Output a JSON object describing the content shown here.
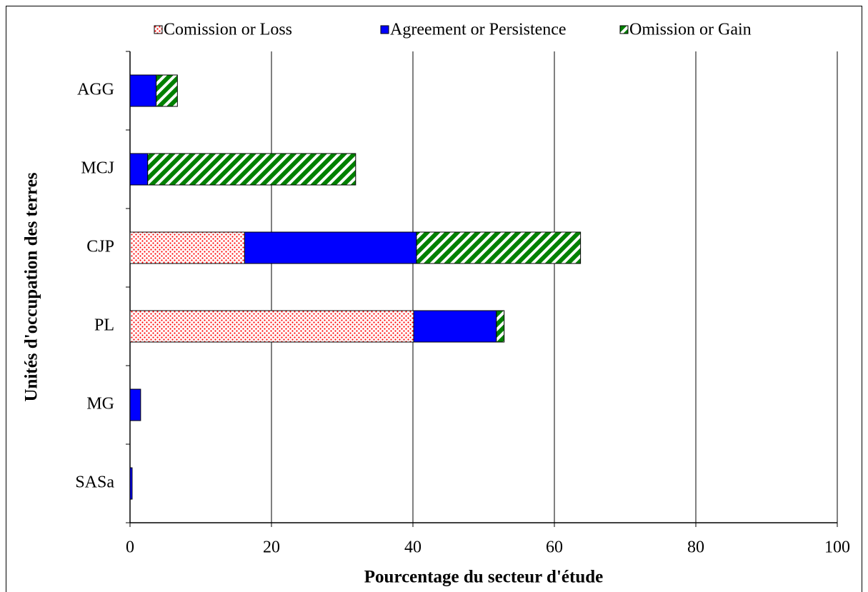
{
  "chart_data": {
    "type": "stacked-bar-horizontal",
    "xlabel": "Pourcentage du secteur d'étude",
    "ylabel": "Unités d'occupation des terres",
    "categories": [
      "AGG",
      "MCJ",
      "CJP",
      "PL",
      "MG",
      "SASa"
    ],
    "series": [
      {
        "name": "Comission or Loss",
        "color": "#ff0000",
        "hatch": "dots",
        "values": [
          0,
          0,
          16.2,
          40.1,
          0,
          0
        ]
      },
      {
        "name": "Agreement or Persistence",
        "color": "#0000ff",
        "hatch": "solid",
        "values": [
          3.7,
          2.5,
          24.3,
          11.7,
          1.5,
          0.3
        ]
      },
      {
        "name": "Omission or Gain",
        "color": "#008000",
        "hatch": "diagonal",
        "values": [
          3.0,
          29.4,
          23.2,
          1.1,
          0,
          0
        ]
      }
    ],
    "xlim": [
      0,
      100
    ],
    "xticks": [
      0,
      20,
      40,
      60,
      80,
      100
    ],
    "grid": true,
    "legend": "top"
  }
}
